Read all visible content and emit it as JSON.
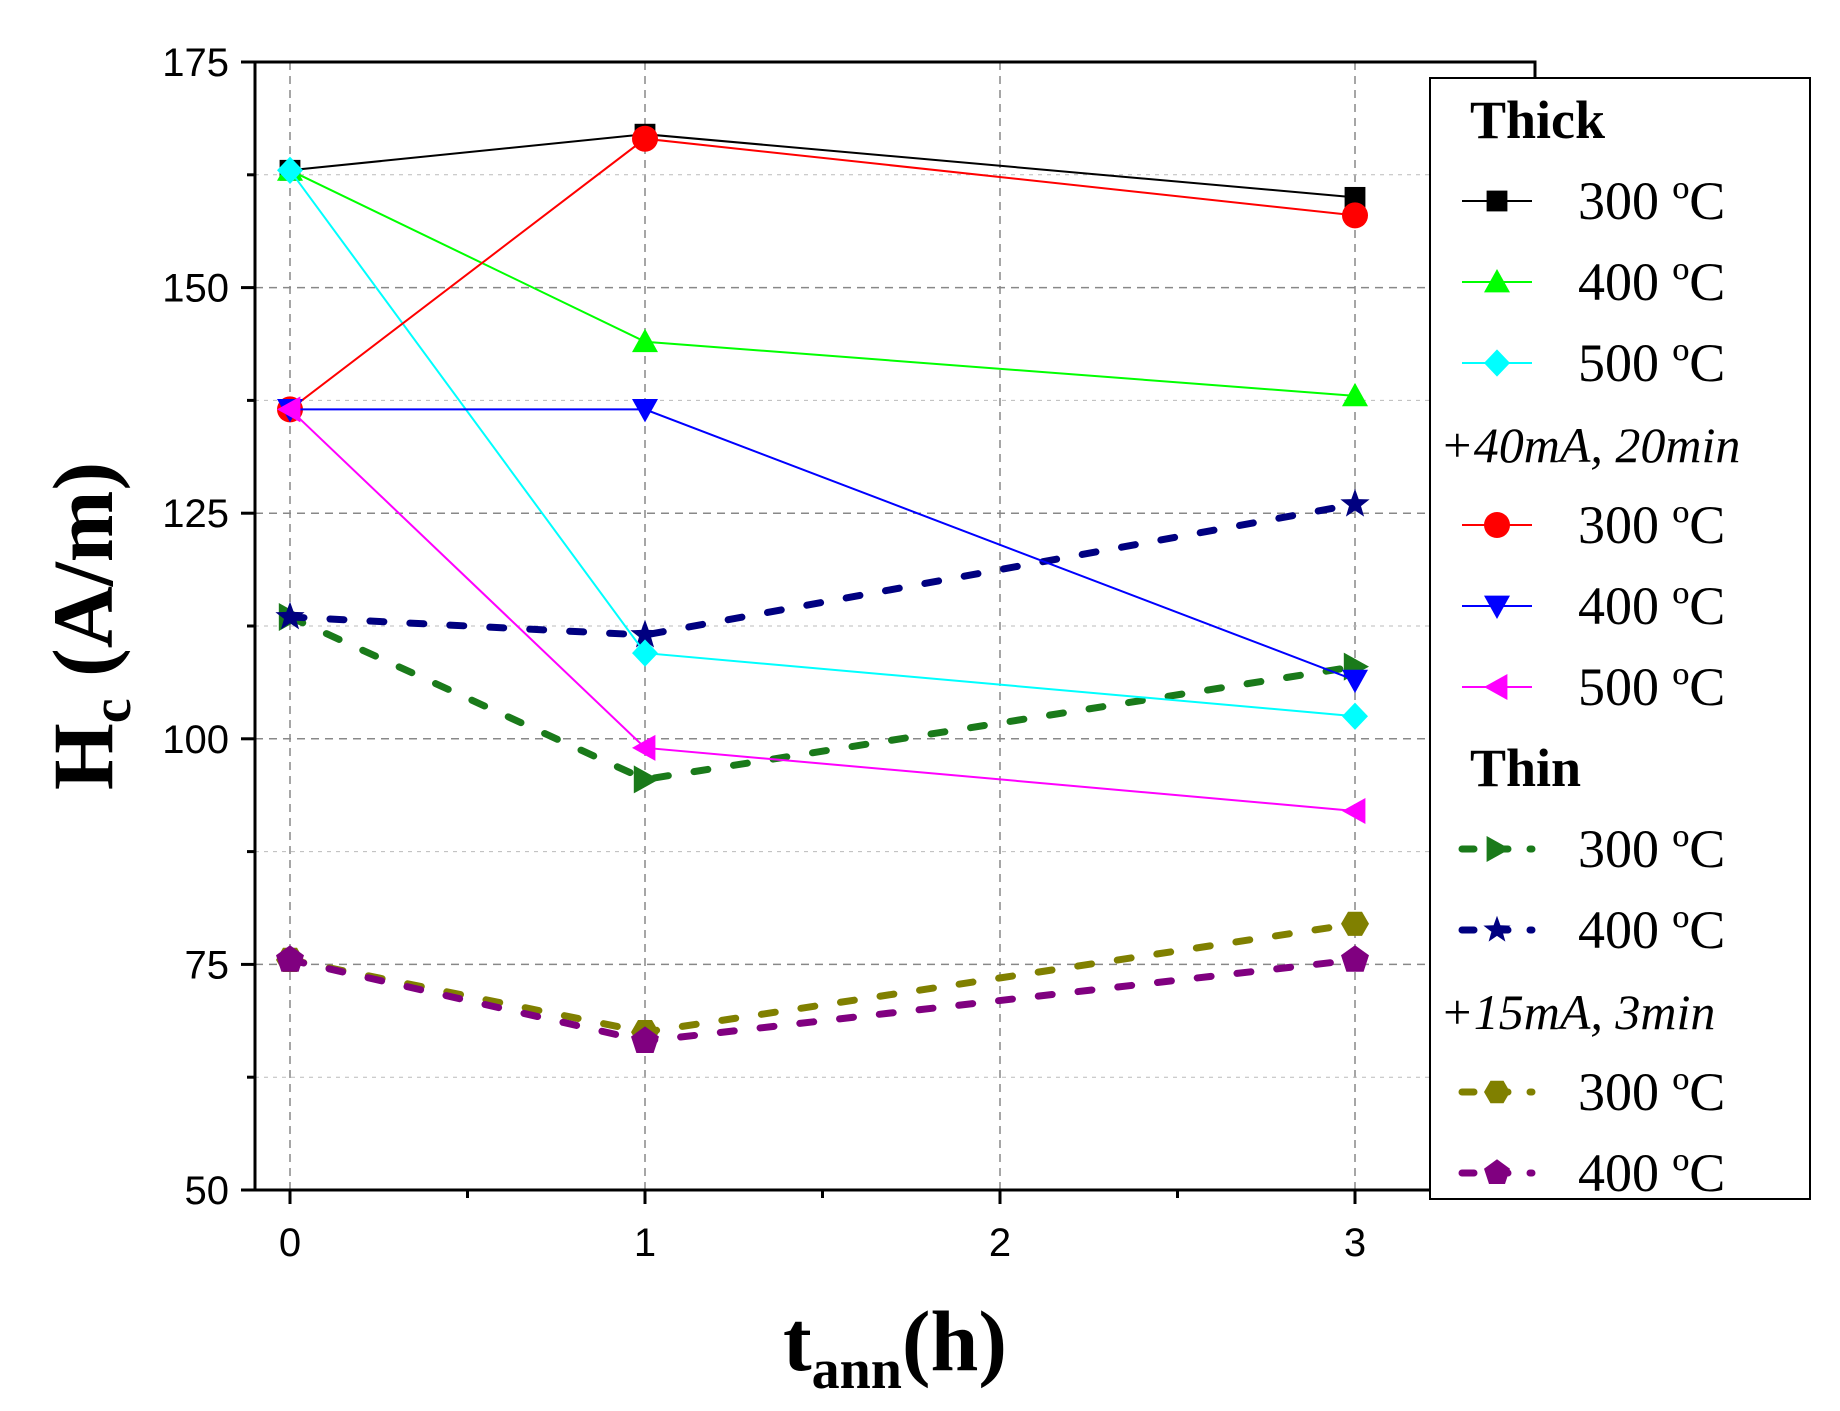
{
  "chart_data": {
    "type": "line",
    "title": "",
    "xlabel": {
      "main": "t",
      "sub": "ann",
      "rest": "(h)"
    },
    "ylabel": {
      "main": "H",
      "sub": "c",
      "rest": " (A/m)"
    },
    "xlim": [
      -0.1,
      3.5
    ],
    "ylim": [
      50,
      175
    ],
    "x_ticks": [
      0,
      1,
      2,
      3
    ],
    "x_tick_labels": [
      "0",
      "1",
      "2",
      "3"
    ],
    "y_ticks": [
      50,
      75,
      100,
      125,
      150,
      175
    ],
    "y_tick_labels": [
      "50",
      "75",
      "100",
      "125",
      "150",
      "175"
    ],
    "grid": true,
    "legend_position": "right",
    "series": [
      {
        "name": "300 ºC",
        "group": "Thick",
        "x": [
          0,
          1,
          3
        ],
        "values": [
          163,
          167,
          160
        ],
        "color": "#000000",
        "marker": "square",
        "style": "solid"
      },
      {
        "name": "400 ºC",
        "group": "Thick",
        "x": [
          0,
          1,
          3
        ],
        "values": [
          163,
          144,
          138
        ],
        "color": "#00ff00",
        "marker": "triangle-up",
        "style": "solid"
      },
      {
        "name": "500 ºC",
        "group": "Thick",
        "x": [
          0,
          1,
          3
        ],
        "values": [
          163,
          109.5,
          102.5
        ],
        "color": "#00ffff",
        "marker": "diamond",
        "style": "solid"
      },
      {
        "name": "300 ºC",
        "group": "+40mA, 20min",
        "x": [
          0,
          1,
          3
        ],
        "values": [
          136.5,
          166.5,
          158
        ],
        "color": "#ff0000",
        "marker": "circle",
        "style": "solid"
      },
      {
        "name": "400 ºC",
        "group": "+40mA, 20min",
        "x": [
          0,
          1,
          3
        ],
        "values": [
          136.5,
          136.5,
          106.5
        ],
        "color": "#0000ff",
        "marker": "triangle-down",
        "style": "solid"
      },
      {
        "name": "500 ºC",
        "group": "+40mA, 20min",
        "x": [
          0,
          1,
          3
        ],
        "values": [
          136.5,
          99,
          92
        ],
        "color": "#ff00ff",
        "marker": "triangle-left",
        "style": "solid"
      },
      {
        "name": "300 ºC",
        "group": "Thin",
        "x": [
          0,
          1,
          3
        ],
        "values": [
          113.5,
          95.5,
          108
        ],
        "color": "#1a7a1a",
        "marker": "triangle-right",
        "style": "dotted"
      },
      {
        "name": "400 ºC",
        "group": "Thin",
        "x": [
          0,
          1,
          3
        ],
        "values": [
          113.5,
          111.5,
          126
        ],
        "color": "#000080",
        "marker": "star",
        "style": "dotted"
      },
      {
        "name": "300 ºC",
        "group": "+15mA, 3min",
        "x": [
          0,
          1,
          3
        ],
        "values": [
          75.5,
          67.5,
          79.5
        ],
        "color": "#808000",
        "marker": "hexagon",
        "style": "dotted"
      },
      {
        "name": "400 ºC",
        "group": "+15mA, 3min",
        "x": [
          0,
          1,
          3
        ],
        "values": [
          75.5,
          66.5,
          75.5
        ],
        "color": "#800080",
        "marker": "pentagon",
        "style": "dotted"
      }
    ],
    "legend": {
      "groups": [
        {
          "title": "Thick",
          "title_style": "bold",
          "series": [
            0,
            1,
            2
          ]
        },
        {
          "title": "+40mA, 20min",
          "title_style": "italic",
          "series": [
            3,
            4,
            5
          ]
        },
        {
          "title": "Thin",
          "title_style": "bold",
          "series": [
            6,
            7
          ]
        },
        {
          "title": "+15mA, 3min",
          "title_style": "italic",
          "series": [
            8,
            9
          ]
        }
      ]
    }
  }
}
